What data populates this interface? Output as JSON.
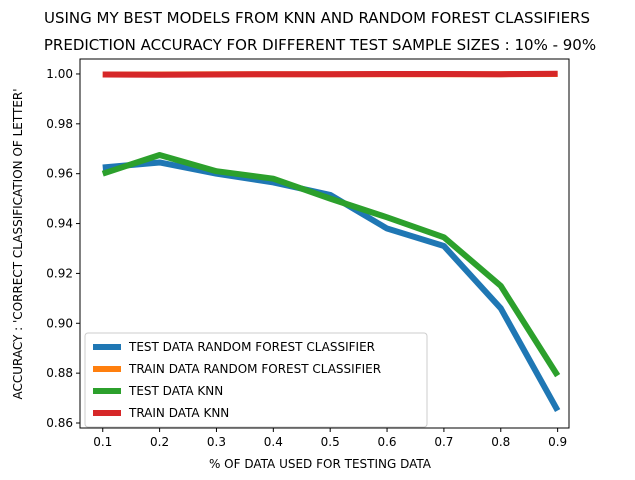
{
  "chart_data": {
    "type": "line",
    "title": "USING MY BEST MODELS FROM KNN AND RANDOM FOREST CLASSIFIERS",
    "subtitle": "PREDICTION ACCURACY FOR DIFFERENT TEST SAMPLE SIZES : 10% - 90%",
    "xlabel": "% OF DATA USED FOR TESTING DATA",
    "ylabel": "ACCURACY : 'CORRECT CLASSIFICATION OF LETTER'",
    "x": [
      0.1,
      0.2,
      0.3,
      0.4,
      0.5,
      0.6,
      0.7,
      0.8,
      0.9
    ],
    "xticks": [
      0.1,
      0.2,
      0.3,
      0.4,
      0.5,
      0.6,
      0.7,
      0.8,
      0.9
    ],
    "xtick_labels": [
      "0.1",
      "0.2",
      "0.3",
      "0.4",
      "0.5",
      "0.6",
      "0.7",
      "0.8",
      "0.9"
    ],
    "yticks": [
      0.86,
      0.88,
      0.9,
      0.92,
      0.94,
      0.96,
      0.98,
      1.0
    ],
    "ytick_labels": [
      "0.86",
      "0.88",
      "0.90",
      "0.92",
      "0.94",
      "0.96",
      "0.98",
      "1.00"
    ],
    "xlim": [
      0.06,
      0.92
    ],
    "ylim": [
      0.858,
      1.006
    ],
    "grid": false,
    "legend_position": "lower-left",
    "series": [
      {
        "name": "TEST DATA RANDOM FOREST CLASSIFIER",
        "color": "#1f77b4",
        "values": [
          0.9625,
          0.9645,
          0.96,
          0.9565,
          0.9515,
          0.938,
          0.931,
          0.906,
          0.865
        ]
      },
      {
        "name": "TRAIN DATA RANDOM FOREST CLASSIFIER",
        "color": "#ff7f0e",
        "values": [
          0.9998,
          0.9998,
          0.9999,
          0.9999,
          0.9999,
          0.9999,
          0.9999,
          0.9999,
          1.0
        ]
      },
      {
        "name": "TEST DATA KNN",
        "color": "#2ca02c",
        "values": [
          0.96,
          0.9675,
          0.961,
          0.958,
          0.95,
          0.9425,
          0.9345,
          0.915,
          0.879
        ]
      },
      {
        "name": "TRAIN DATA KNN",
        "color": "#d62728",
        "values": [
          0.9998,
          0.9997,
          0.9998,
          0.9999,
          0.9999,
          1.0,
          1.0,
          0.9999,
          1.0001
        ]
      }
    ]
  }
}
